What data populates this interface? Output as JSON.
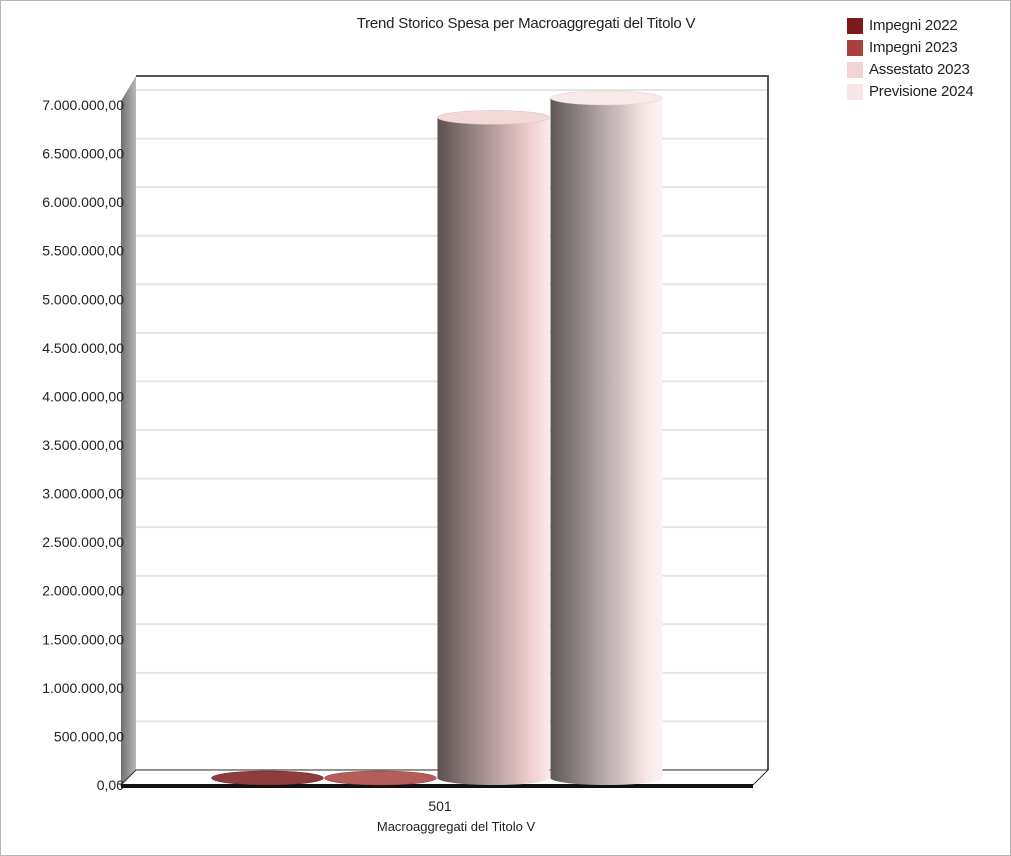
{
  "chart_data": {
    "type": "bar",
    "style": "3d-cylinder",
    "title": "Trend Storico Spesa per Macroaggregati del Titolo V",
    "xlabel": "Macroaggregati del Titolo V",
    "ylabel": "",
    "categories": [
      "501"
    ],
    "series": [
      {
        "name": "Impegni 2022",
        "values": [
          0
        ],
        "color": "#7a1a1a"
      },
      {
        "name": "Impegni 2023",
        "values": [
          0
        ],
        "color": "#a8403c"
      },
      {
        "name": "Assestato 2023",
        "values": [
          6800000
        ],
        "color": "#f2d2d2"
      },
      {
        "name": "Previsione 2024",
        "values": [
          7000000
        ],
        "color": "#f8e6e6"
      }
    ],
    "ylim": [
      0,
      7000000
    ],
    "y_ticks": [
      0,
      500000,
      1000000,
      1500000,
      2000000,
      2500000,
      3000000,
      3500000,
      4000000,
      4500000,
      5000000,
      5500000,
      6000000,
      6500000,
      7000000
    ],
    "y_tick_labels": [
      "0,00",
      "500.000,00",
      "1.000.000,00",
      "1.500.000,00",
      "2.000.000,00",
      "2.500.000,00",
      "3.000.000,00",
      "3.500.000,00",
      "4.000.000,00",
      "4.500.000,00",
      "5.000.000,00",
      "5.500.000,00",
      "6.000.000,00",
      "6.500.000,00",
      "7.000.000,00"
    ],
    "grid": true,
    "legend_position": "top-right",
    "background": "#ffffff",
    "grid_color": "#e4e4e4"
  }
}
